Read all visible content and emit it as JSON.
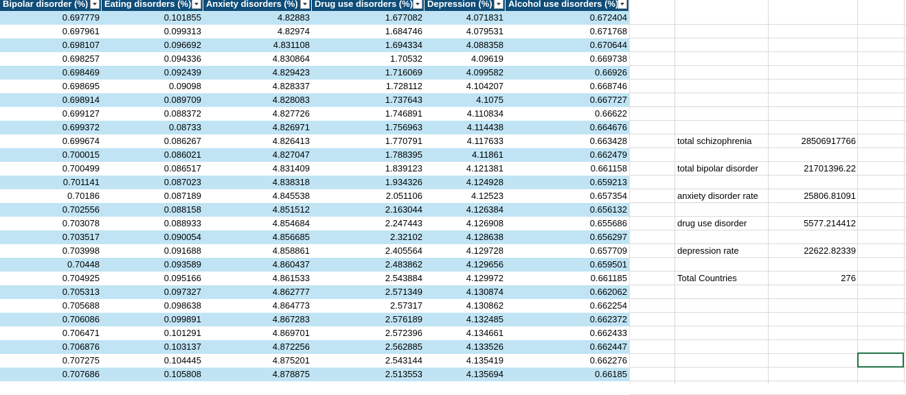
{
  "headers": [
    "Bipolar disorder (%)",
    "Eating disorders (%)",
    "Anxiety disorders (%)",
    "Drug use disorders (%)",
    "Depression (%)",
    "Alcohol use disorders (%)"
  ],
  "rows": [
    [
      "0.697779",
      "0.101855",
      "4.82883",
      "1.677082",
      "4.071831",
      "0.672404"
    ],
    [
      "0.697961",
      "0.099313",
      "4.82974",
      "1.684746",
      "4.079531",
      "0.671768"
    ],
    [
      "0.698107",
      "0.096692",
      "4.831108",
      "1.694334",
      "4.088358",
      "0.670644"
    ],
    [
      "0.698257",
      "0.094336",
      "4.830864",
      "1.70532",
      "4.09619",
      "0.669738"
    ],
    [
      "0.698469",
      "0.092439",
      "4.829423",
      "1.716069",
      "4.099582",
      "0.66926"
    ],
    [
      "0.698695",
      "0.09098",
      "4.828337",
      "1.728112",
      "4.104207",
      "0.668746"
    ],
    [
      "0.698914",
      "0.089709",
      "4.828083",
      "1.737643",
      "4.1075",
      "0.667727"
    ],
    [
      "0.699127",
      "0.088372",
      "4.827726",
      "1.746891",
      "4.110834",
      "0.66622"
    ],
    [
      "0.699372",
      "0.08733",
      "4.826971",
      "1.756963",
      "4.114438",
      "0.664676"
    ],
    [
      "0.699674",
      "0.086267",
      "4.826413",
      "1.770791",
      "4.117633",
      "0.663428"
    ],
    [
      "0.700015",
      "0.086021",
      "4.827047",
      "1.788395",
      "4.11861",
      "0.662479"
    ],
    [
      "0.700499",
      "0.086517",
      "4.831409",
      "1.839123",
      "4.121381",
      "0.661158"
    ],
    [
      "0.701141",
      "0.087023",
      "4.838318",
      "1.934326",
      "4.124928",
      "0.659213"
    ],
    [
      "0.70186",
      "0.087189",
      "4.845538",
      "2.051106",
      "4.12523",
      "0.657354"
    ],
    [
      "0.702556",
      "0.088158",
      "4.851512",
      "2.163044",
      "4.126384",
      "0.656132"
    ],
    [
      "0.703078",
      "0.088933",
      "4.854684",
      "2.247443",
      "4.126908",
      "0.655686"
    ],
    [
      "0.703517",
      "0.090054",
      "4.856685",
      "2.32102",
      "4.128638",
      "0.656297"
    ],
    [
      "0.703998",
      "0.091688",
      "4.858861",
      "2.405564",
      "4.129728",
      "0.657709"
    ],
    [
      "0.70448",
      "0.093589",
      "4.860437",
      "2.483862",
      "4.129656",
      "0.659501"
    ],
    [
      "0.704925",
      "0.095166",
      "4.861533",
      "2.543884",
      "4.129972",
      "0.661185"
    ],
    [
      "0.705313",
      "0.097327",
      "4.862777",
      "2.571349",
      "4.130874",
      "0.662062"
    ],
    [
      "0.705688",
      "0.098638",
      "4.864773",
      "2.57317",
      "4.130862",
      "0.662254"
    ],
    [
      "0.706086",
      "0.099891",
      "4.867283",
      "2.576189",
      "4.132485",
      "0.662372"
    ],
    [
      "0.706471",
      "0.101291",
      "4.869701",
      "2.572396",
      "4.134661",
      "0.662433"
    ],
    [
      "0.706876",
      "0.103137",
      "4.872256",
      "2.562885",
      "4.133526",
      "0.662447"
    ],
    [
      "0.707275",
      "0.104445",
      "4.875201",
      "2.543144",
      "4.135419",
      "0.662276"
    ],
    [
      "0.707686",
      "0.105808",
      "4.878875",
      "2.513553",
      "4.135694",
      "0.66185"
    ]
  ],
  "summary": [
    {
      "label": "total schizophrenia",
      "value": "28506917766"
    },
    {
      "label": "total bipolar disorder",
      "value": "21701396.22"
    },
    {
      "label": "anxiety disorder rate",
      "value": "25806.81091"
    },
    {
      "label": "drug use disorder",
      "value": "5577.214412"
    },
    {
      "label": "depression rate",
      "value": "22622.82339"
    },
    {
      "label": "Total Countries",
      "value": "276"
    }
  ],
  "colors": {
    "header_bg": "#0f4d78",
    "band": "#c0e4f4",
    "selection": "#217346"
  },
  "icons": [
    "filter-dropdown-icon"
  ]
}
